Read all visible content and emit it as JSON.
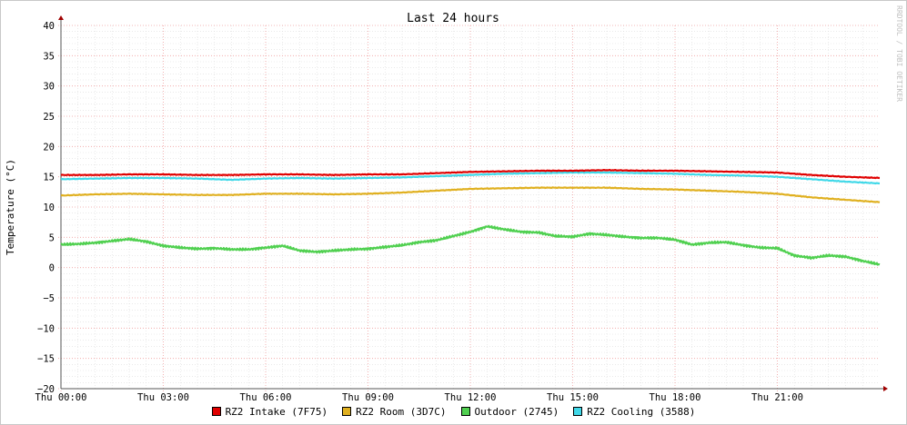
{
  "chart_data": {
    "type": "line",
    "title": "Last 24 hours",
    "ylabel": "Temperature (°C)",
    "watermark": "RRDTOOL / TOBI OETIKER",
    "ylim": [
      -20,
      40
    ],
    "yticks": [
      40,
      35,
      30,
      25,
      20,
      15,
      10,
      5,
      0,
      -5,
      -10,
      -15,
      -20
    ],
    "xlim_hours": [
      0,
      24
    ],
    "xticks": [
      {
        "hour": 0,
        "label": "Thu 00:00"
      },
      {
        "hour": 3,
        "label": "Thu 03:00"
      },
      {
        "hour": 6,
        "label": "Thu 06:00"
      },
      {
        "hour": 9,
        "label": "Thu 09:00"
      },
      {
        "hour": 12,
        "label": "Thu 12:00"
      },
      {
        "hour": 15,
        "label": "Thu 15:00"
      },
      {
        "hour": 18,
        "label": "Thu 18:00"
      },
      {
        "hour": 21,
        "label": "Thu 21:00"
      }
    ],
    "grid": true,
    "legend_position": "bottom",
    "series": [
      {
        "name": "RZ2 Intake (7F75)",
        "color": "#e00000",
        "x_hours": [
          0,
          1,
          2,
          3,
          4,
          5,
          6,
          7,
          8,
          9,
          10,
          11,
          12,
          13,
          14,
          15,
          16,
          17,
          18,
          19,
          20,
          21,
          22,
          23,
          24
        ],
        "values": [
          15.3,
          15.3,
          15.4,
          15.4,
          15.3,
          15.3,
          15.4,
          15.4,
          15.3,
          15.4,
          15.4,
          15.6,
          15.8,
          15.9,
          16.0,
          16.0,
          16.1,
          16.0,
          16.0,
          15.9,
          15.8,
          15.7,
          15.3,
          15.0,
          14.8
        ]
      },
      {
        "name": "RZ2 Room (3D7C)",
        "color": "#e0b020",
        "x_hours": [
          0,
          1,
          2,
          3,
          4,
          5,
          6,
          7,
          8,
          9,
          10,
          11,
          12,
          13,
          14,
          15,
          16,
          17,
          18,
          19,
          20,
          21,
          22,
          23,
          24
        ],
        "values": [
          11.9,
          12.1,
          12.2,
          12.1,
          12.0,
          12.0,
          12.2,
          12.2,
          12.1,
          12.2,
          12.4,
          12.7,
          13.0,
          13.1,
          13.2,
          13.2,
          13.2,
          13.0,
          12.9,
          12.7,
          12.5,
          12.2,
          11.6,
          11.2,
          10.8
        ]
      },
      {
        "name": "Outdoor (2745)",
        "color": "#50d050",
        "x_hours": [
          0,
          0.5,
          1,
          1.5,
          2,
          2.5,
          3,
          3.5,
          4,
          4.5,
          5,
          5.5,
          6,
          6.5,
          7,
          7.5,
          8,
          8.5,
          9,
          9.5,
          10,
          10.5,
          11,
          11.5,
          12,
          12.5,
          13,
          13.5,
          14,
          14.5,
          15,
          15.5,
          16,
          16.5,
          17,
          17.5,
          18,
          18.5,
          19,
          19.5,
          20,
          20.5,
          21,
          21.5,
          22,
          22.5,
          23,
          23.5,
          24
        ],
        "values": [
          3.8,
          3.9,
          4.1,
          4.4,
          4.7,
          4.3,
          3.6,
          3.3,
          3.1,
          3.2,
          3.0,
          3.0,
          3.3,
          3.6,
          2.8,
          2.6,
          2.8,
          3.0,
          3.1,
          3.4,
          3.7,
          4.2,
          4.5,
          5.2,
          5.9,
          6.8,
          6.3,
          5.9,
          5.8,
          5.2,
          5.1,
          5.6,
          5.4,
          5.1,
          4.9,
          4.9,
          4.6,
          3.8,
          4.1,
          4.2,
          3.7,
          3.3,
          3.2,
          2.0,
          1.6,
          2.0,
          1.8,
          1.1,
          0.5
        ]
      },
      {
        "name": "RZ2 Cooling (3588)",
        "color": "#40d8e8",
        "x_hours": [
          0,
          1,
          2,
          3,
          4,
          5,
          6,
          7,
          8,
          9,
          10,
          11,
          12,
          13,
          14,
          15,
          16,
          17,
          18,
          19,
          20,
          21,
          22,
          23,
          24
        ],
        "values": [
          14.6,
          14.7,
          14.8,
          14.8,
          14.7,
          14.5,
          14.7,
          14.8,
          14.7,
          14.8,
          14.9,
          15.1,
          15.3,
          15.5,
          15.6,
          15.7,
          15.7,
          15.6,
          15.5,
          15.3,
          15.2,
          15.0,
          14.6,
          14.2,
          13.9
        ]
      }
    ]
  }
}
